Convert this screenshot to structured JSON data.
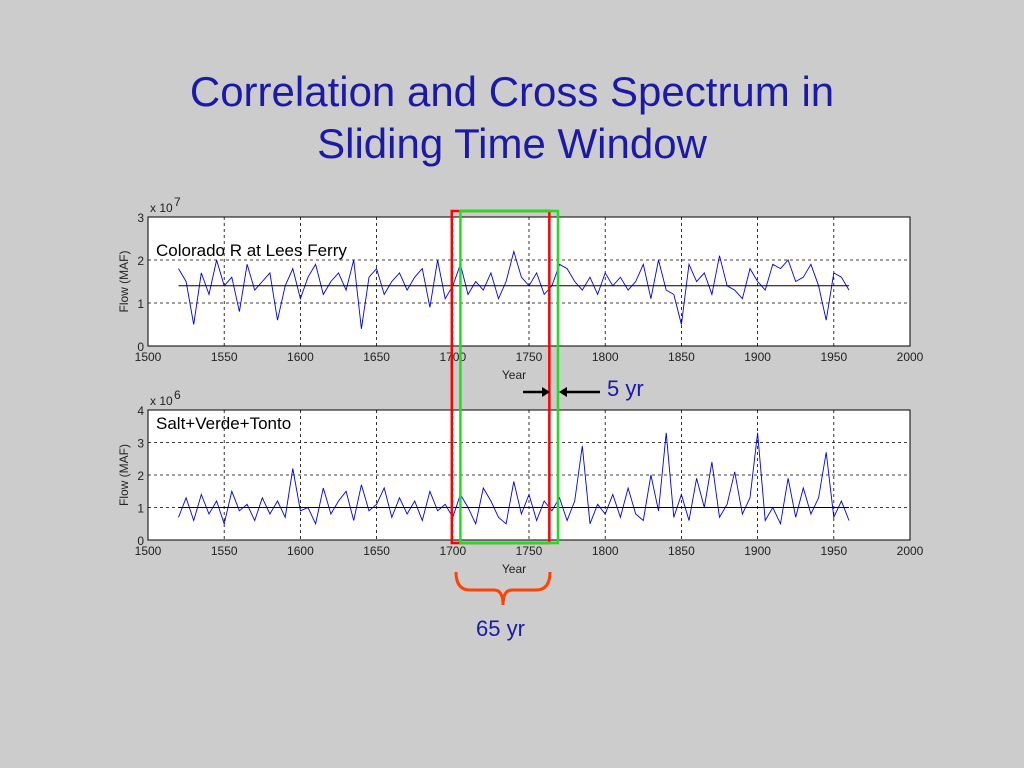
{
  "slide": {
    "title_line1": "Correlation and Cross Spectrum in",
    "title_line2": "Sliding Time Window",
    "annotation_step": "5 yr",
    "annotation_window": "65 yr",
    "colors": {
      "title": "#1a1aa6",
      "window_1": "#ff0000",
      "window_2": "#22dd22",
      "brace": "#ff4400",
      "series": "#0000ee"
    },
    "window_1_years": [
      1700,
      1764
    ],
    "window_2_years": [
      1705,
      1769
    ]
  },
  "chart_data": [
    {
      "type": "line",
      "title": "Colorado R at Lees Ferry",
      "xlabel": "Year",
      "ylabel": "Flow (MAF)",
      "y_multiplier": "x 10",
      "y_exponent": "7",
      "xlim": [
        1500,
        2000
      ],
      "ylim": [
        0,
        3
      ],
      "xticks": [
        "1500",
        "1550",
        "1600",
        "1650",
        "1700",
        "1750",
        "1800",
        "1850",
        "1900",
        "1950",
        "2000"
      ],
      "yticks": [
        "0",
        "1",
        "2",
        "3"
      ],
      "grid": true,
      "mean": 1.4,
      "x_start": 1520,
      "x_step": 5,
      "values": [
        1.8,
        1.5,
        0.5,
        1.7,
        1.2,
        2.0,
        1.4,
        1.6,
        0.8,
        1.9,
        1.3,
        1.5,
        1.7,
        0.6,
        1.4,
        1.8,
        1.1,
        1.6,
        1.9,
        1.2,
        1.5,
        1.7,
        1.3,
        2.0,
        0.4,
        1.6,
        1.8,
        1.2,
        1.5,
        1.7,
        1.3,
        1.6,
        1.8,
        0.9,
        2.0,
        1.1,
        1.4,
        1.9,
        1.2,
        1.5,
        1.3,
        1.7,
        1.1,
        1.5,
        2.2,
        1.6,
        1.4,
        1.7,
        1.2,
        1.4,
        1.9,
        1.8,
        1.5,
        1.3,
        1.6,
        1.2,
        1.7,
        1.4,
        1.6,
        1.3,
        1.5,
        1.9,
        1.1,
        2.0,
        1.3,
        1.2,
        0.5,
        1.9,
        1.5,
        1.7,
        1.2,
        2.1,
        1.4,
        1.3,
        1.1,
        1.8,
        1.5,
        1.3,
        1.9,
        1.8,
        2.0,
        1.5,
        1.6,
        1.9,
        1.4,
        0.6,
        1.7,
        1.6,
        1.3
      ]
    },
    {
      "type": "line",
      "title": "Salt+Verde+Tonto",
      "xlabel": "Year",
      "ylabel": "Flow (MAF)",
      "y_multiplier": "x 10",
      "y_exponent": "6",
      "xlim": [
        1500,
        2000
      ],
      "ylim": [
        0,
        4
      ],
      "xticks": [
        "1500",
        "1550",
        "1600",
        "1650",
        "1700",
        "1750",
        "1800",
        "1850",
        "1900",
        "1950",
        "2000"
      ],
      "yticks": [
        "0",
        "1",
        "2",
        "3",
        "4"
      ],
      "grid": true,
      "mean": 1.0,
      "x_start": 1520,
      "x_step": 5,
      "values": [
        0.7,
        1.3,
        0.6,
        1.4,
        0.8,
        1.2,
        0.5,
        1.5,
        0.9,
        1.1,
        0.6,
        1.3,
        0.8,
        1.2,
        0.7,
        2.2,
        0.9,
        1.0,
        0.5,
        1.6,
        0.8,
        1.2,
        1.5,
        0.6,
        1.7,
        0.9,
        1.1,
        1.6,
        0.7,
        1.3,
        0.8,
        1.2,
        0.6,
        1.5,
        0.9,
        1.1,
        0.7,
        1.4,
        1.0,
        0.5,
        1.6,
        1.2,
        0.7,
        0.5,
        1.8,
        0.8,
        1.4,
        0.6,
        1.2,
        0.9,
        1.3,
        0.6,
        1.2,
        2.9,
        0.5,
        1.1,
        0.8,
        1.4,
        0.7,
        1.6,
        0.8,
        0.6,
        2.0,
        0.9,
        3.3,
        0.7,
        1.4,
        0.6,
        1.9,
        1.0,
        2.4,
        0.7,
        1.1,
        2.1,
        0.8,
        1.3,
        3.3,
        0.6,
        1.0,
        0.5,
        1.9,
        0.7,
        1.6,
        0.8,
        1.3,
        2.7,
        0.7,
        1.2,
        0.6
      ]
    }
  ]
}
